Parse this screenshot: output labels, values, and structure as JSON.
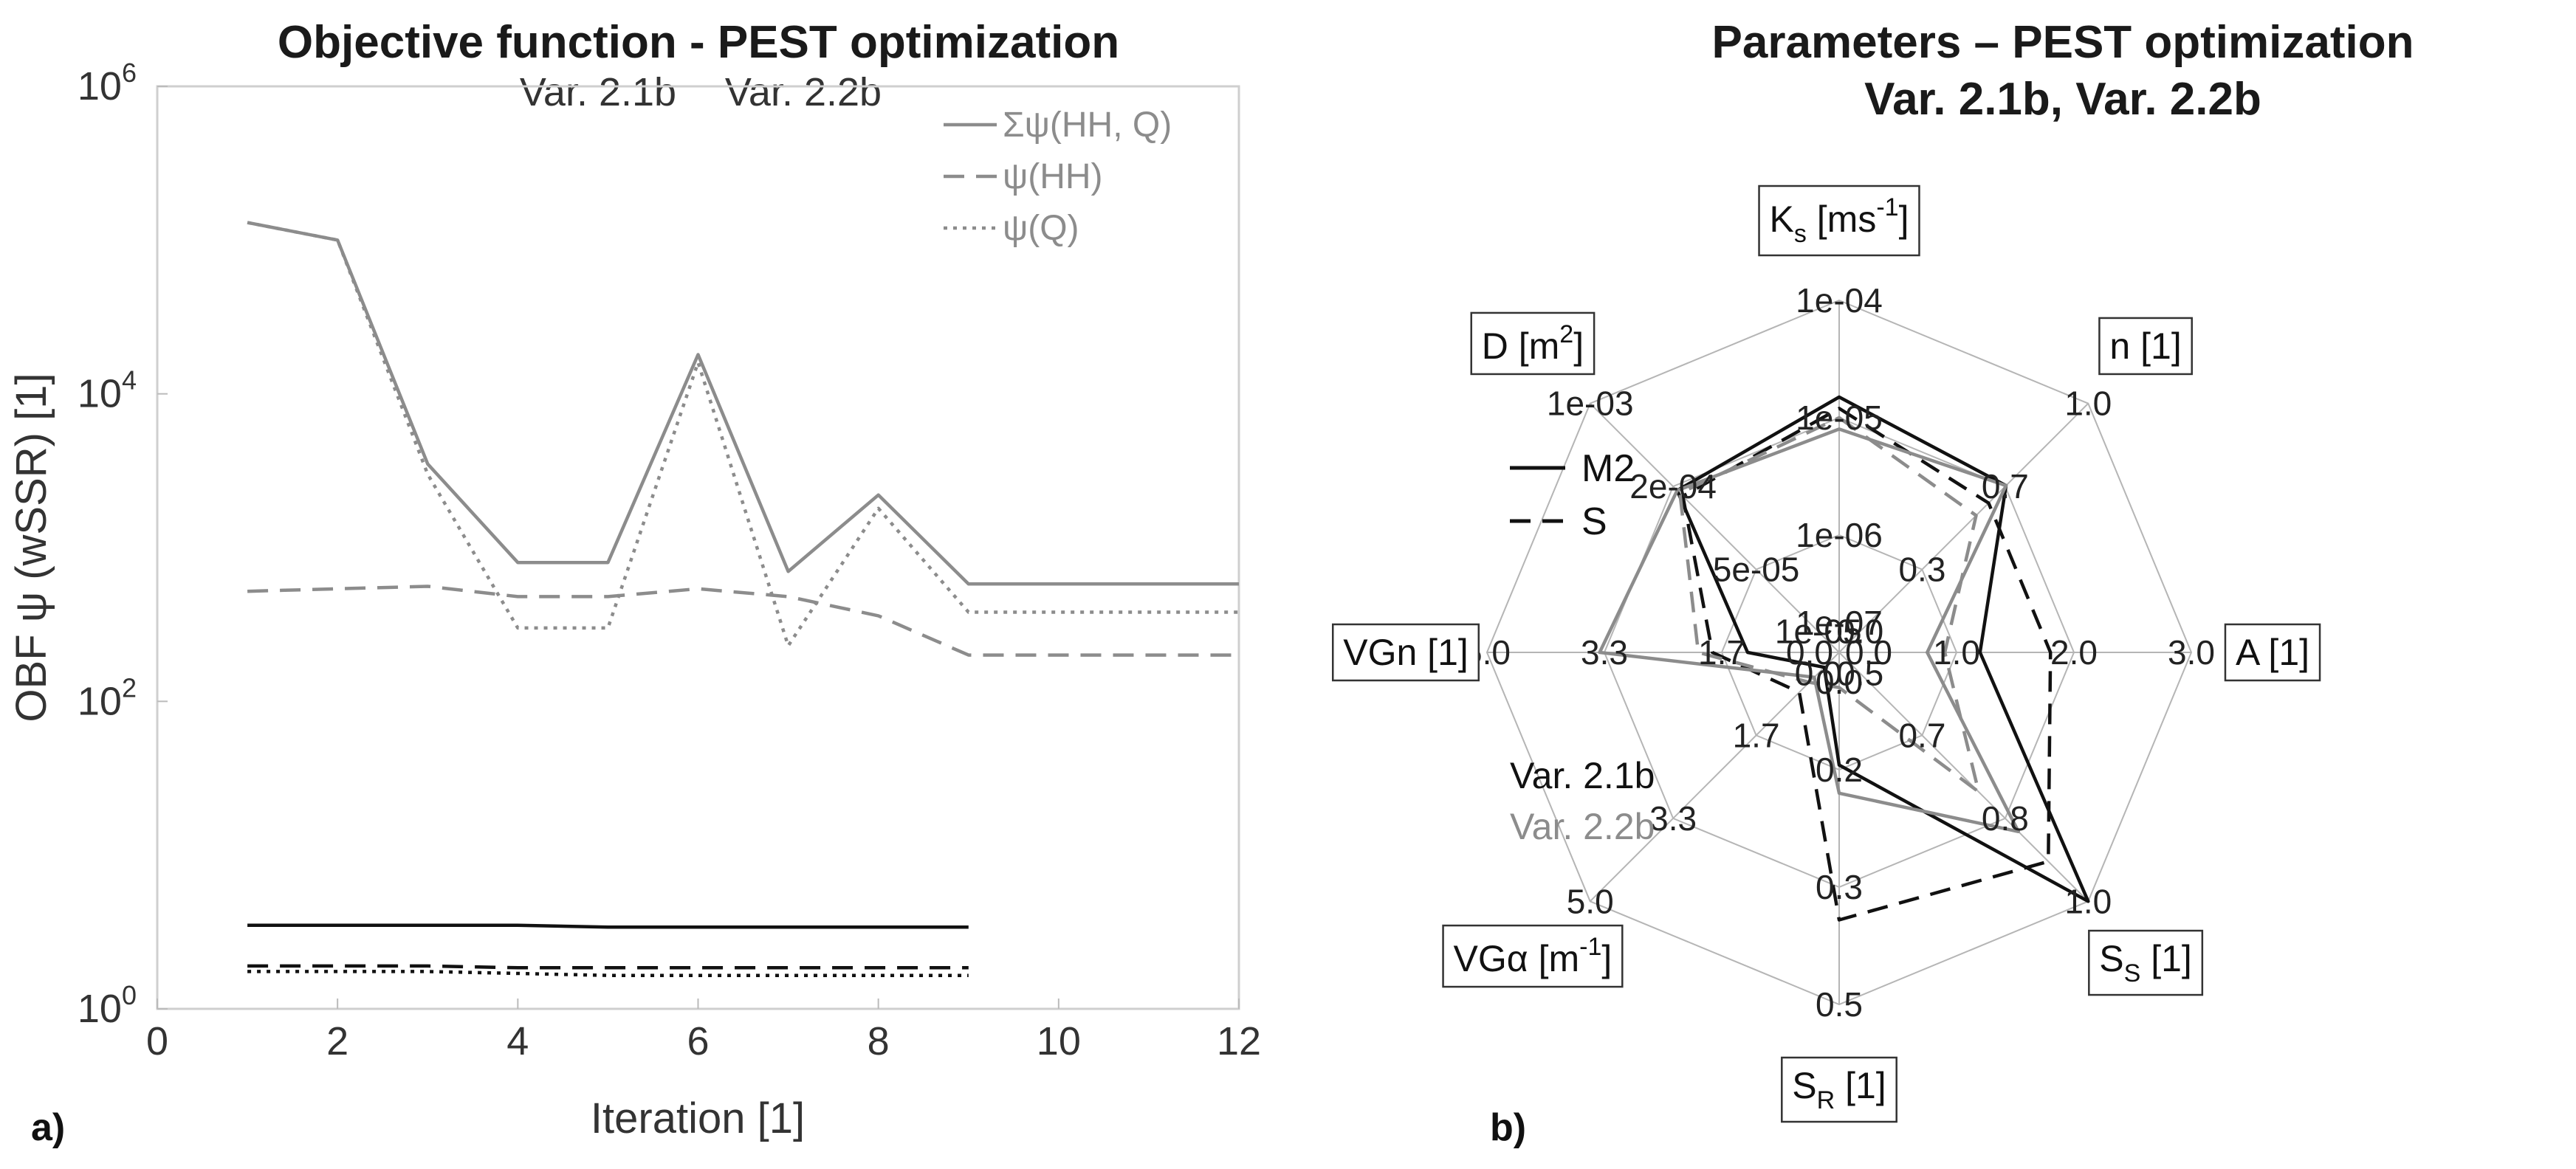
{
  "chart_data": [
    {
      "type": "line",
      "panel_label": "a)",
      "title": "Objective function - PEST optimization",
      "subtitle": [
        "Var. 2.1b",
        "Var. 2.2b"
      ],
      "xlabel": "Iteration [1]",
      "ylabel": "OBF ψ (wSSR) [1]",
      "xlim": [
        0,
        12
      ],
      "ylim": [
        1,
        1000000
      ],
      "yscale": "log",
      "xticks": [
        "0",
        "2",
        "4",
        "6",
        "8",
        "10",
        "12"
      ],
      "yticks": [
        {
          "base": "10",
          "exp": "0"
        },
        {
          "base": "10",
          "exp": "2"
        },
        {
          "base": "10",
          "exp": "4"
        },
        {
          "base": "10",
          "exp": "6"
        }
      ],
      "legend": {
        "position": "top-right",
        "entries": [
          "Σψ(HH, Q)",
          "ψ(HH)",
          "ψ(Q)"
        ]
      },
      "series": [
        {
          "name": "Σψ(HH, Q)",
          "variant": "Var. 2.1b",
          "color": "#111111",
          "dash": "solid",
          "x": [
            1,
            2,
            3,
            4,
            5,
            6,
            7,
            8,
            9
          ],
          "y": [
            3.5,
            3.5,
            3.5,
            3.5,
            3.4,
            3.4,
            3.4,
            3.4,
            3.4
          ]
        },
        {
          "name": "ψ(HH)",
          "variant": "Var. 2.1b",
          "color": "#111111",
          "dash": "dashed",
          "x": [
            1,
            2,
            3,
            4,
            5,
            6,
            7,
            8,
            9
          ],
          "y": [
            1.9,
            1.9,
            1.9,
            1.85,
            1.85,
            1.85,
            1.85,
            1.85,
            1.85
          ]
        },
        {
          "name": "ψ(Q)",
          "variant": "Var. 2.1b",
          "color": "#111111",
          "dash": "dotted",
          "x": [
            1,
            2,
            3,
            4,
            5,
            6,
            7,
            8,
            9
          ],
          "y": [
            1.75,
            1.75,
            1.75,
            1.7,
            1.65,
            1.65,
            1.65,
            1.65,
            1.65
          ]
        },
        {
          "name": "Σψ(HH, Q)",
          "variant": "Var. 2.2b",
          "color": "#8c8c8c",
          "dash": "solid",
          "x": [
            1,
            2,
            3,
            4,
            5,
            6,
            7,
            8,
            9,
            12
          ],
          "y": [
            130000,
            100000,
            3500,
            800,
            800,
            18000,
            700,
            2200,
            580,
            580
          ]
        },
        {
          "name": "ψ(HH)",
          "variant": "Var. 2.2b",
          "color": "#8c8c8c",
          "dash": "dashed",
          "x": [
            1,
            2,
            3,
            4,
            5,
            6,
            7,
            8,
            9,
            12
          ],
          "y": [
            520,
            540,
            560,
            480,
            480,
            540,
            480,
            360,
            200,
            200
          ]
        },
        {
          "name": "ψ(Q)",
          "variant": "Var. 2.2b",
          "color": "#8c8c8c",
          "dash": "dotted",
          "x": [
            1,
            2,
            3,
            4,
            5,
            6,
            7,
            8,
            9,
            12
          ],
          "y": [
            130000,
            100000,
            3000,
            300,
            300,
            16000,
            230,
            1800,
            380,
            380
          ]
        }
      ]
    },
    {
      "type": "radar",
      "panel_label": "b)",
      "title": [
        "Parameters – PEST optimization",
        "Var. 2.1b, Var. 2.2b"
      ],
      "axes": [
        {
          "label": "K",
          "sub": "s",
          "post": " [ms",
          "sup": "-1",
          "tail": "]",
          "scale": "log",
          "range": [
            1e-07,
            0.0001
          ],
          "ring_labels": [
            "1e-07",
            "1e-06",
            "1e-05",
            "1e-04"
          ]
        },
        {
          "label": "n [1]",
          "sub": "",
          "post": "",
          "sup": "",
          "tail": "",
          "scale": "linear",
          "range": [
            0.0,
            1.0
          ],
          "ring_labels": [
            "0.0",
            "0.3",
            "0.7",
            "1.0"
          ]
        },
        {
          "label": "A [1]",
          "sub": "",
          "post": "",
          "sup": "",
          "tail": "",
          "scale": "linear",
          "range": [
            0.0,
            3.0
          ],
          "ring_labels": [
            "0.0",
            "1.0",
            "2.0",
            "3.0"
          ]
        },
        {
          "label": "S",
          "sub": "S",
          "post": " [1]",
          "sup": "",
          "tail": "",
          "scale": "linear",
          "range": [
            0.5,
            1.0
          ],
          "ring_labels": [
            "0.5",
            "0.7",
            "0.8",
            "1.0"
          ]
        },
        {
          "label": "S",
          "sub": "R",
          "post": " [1]",
          "sup": "",
          "tail": "",
          "scale": "linear",
          "range": [
            0.0,
            0.5
          ],
          "ring_labels": [
            "0.0",
            "0.2",
            "0.3",
            "0.5"
          ]
        },
        {
          "label": "VGα [m",
          "sub": "",
          "post": "",
          "sup": "-1",
          "tail": "]",
          "scale": "linear",
          "range": [
            0.0,
            5.0
          ],
          "ring_labels": [
            "0.0",
            "1.7",
            "3.3",
            "5.0"
          ]
        },
        {
          "label": "VGn [1]",
          "sub": "",
          "post": "",
          "sup": "",
          "tail": "",
          "scale": "linear",
          "range": [
            0.0,
            5.0
          ],
          "ring_labels": [
            "0.0",
            "1.7",
            "3.3",
            "5.0"
          ]
        },
        {
          "label": "D [m",
          "sub": "",
          "post": "",
          "sup": "2",
          "tail": "]",
          "scale": "log",
          "range": [
            1e-05,
            0.001
          ],
          "ring_labels": [
            "1e-05",
            "5e-05",
            "2e-04",
            "1e-03"
          ]
        }
      ],
      "legend": {
        "position": "left",
        "entries": [
          "M2",
          "S"
        ],
        "variants": [
          "Var. 2.1b",
          "Var. 2.2b"
        ]
      },
      "series": [
        {
          "name": "M2",
          "variant": "Var. 2.1b",
          "color": "#111111",
          "dash": "solid",
          "values": [
            1.5e-05,
            0.67,
            1.2,
            1.0,
            0.16,
            0.3,
            1.3,
            0.0002
          ]
        },
        {
          "name": "S",
          "variant": "Var. 2.1b",
          "color": "#111111",
          "dash": "dashed",
          "values": [
            1.2e-05,
            0.6,
            1.8,
            0.92,
            0.38,
            0.8,
            1.8,
            0.00018
          ]
        },
        {
          "name": "M2",
          "variant": "Var. 2.2b",
          "color": "#8c8c8c",
          "dash": "solid",
          "values": [
            8e-06,
            0.67,
            0.75,
            0.86,
            0.2,
            0.5,
            3.4,
            0.0002
          ]
        },
        {
          "name": "S",
          "variant": "Var. 2.2b",
          "color": "#8c8c8c",
          "dash": "dashed",
          "values": [
            1e-05,
            0.55,
            0.9,
            0.78,
            0.05,
            0.6,
            2.0,
            0.00019
          ]
        }
      ]
    }
  ]
}
